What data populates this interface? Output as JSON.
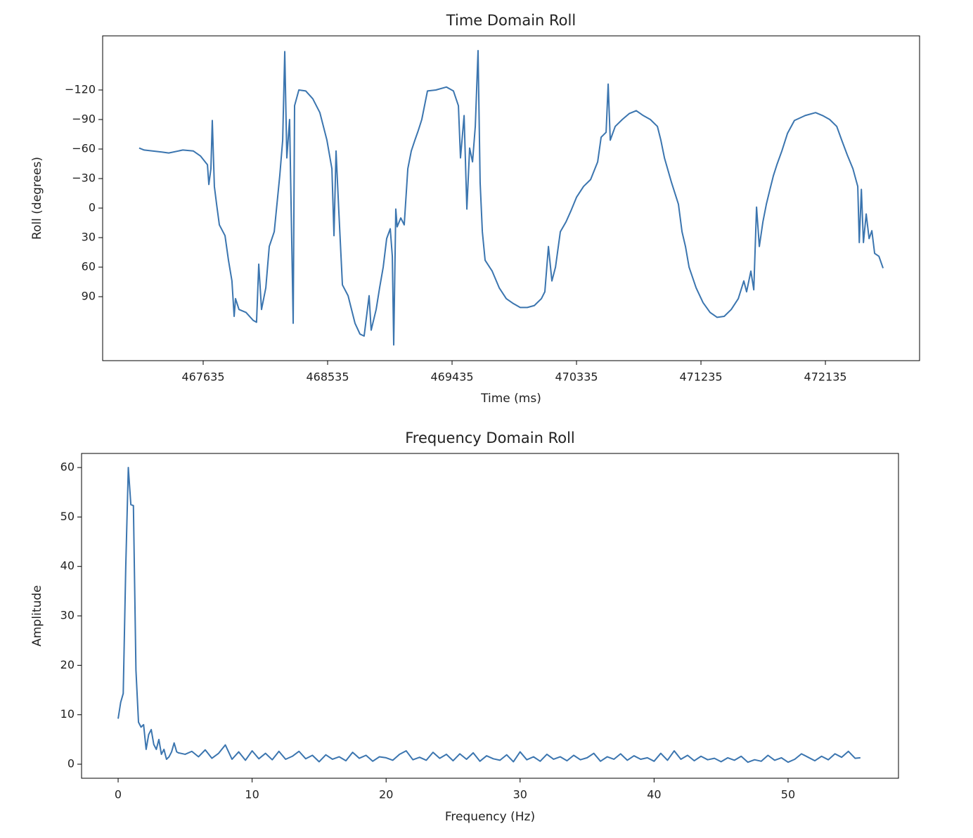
{
  "chart_data": [
    {
      "type": "line",
      "title": "Time Domain Roll",
      "xlabel": "Time (ms)",
      "ylabel": "Roll (degrees)",
      "color": "#3b75af",
      "x": [
        467172,
        467208,
        467335,
        467386,
        467488,
        467564,
        467615,
        467666,
        467676,
        467691,
        467701,
        467716,
        467732,
        467752,
        467793,
        467818,
        467843,
        467859,
        467869,
        467894,
        467945,
        467996,
        468021,
        468037,
        468057,
        468088,
        468113,
        468149,
        468189,
        468210,
        468225,
        468240,
        468260,
        468286,
        468296,
        468327,
        468377,
        468428,
        468479,
        468530,
        468566,
        468581,
        468596,
        468616,
        468642,
        468683,
        468708,
        468733,
        468769,
        468799,
        468835,
        468850,
        468886,
        468911,
        468937,
        468962,
        468988,
        469003,
        469013,
        469028,
        469038,
        469064,
        469089,
        469115,
        469140,
        469166,
        469191,
        469216,
        469257,
        469318,
        469394,
        469445,
        469481,
        469496,
        469522,
        469542,
        469562,
        469583,
        469603,
        469623,
        469638,
        469654,
        469674,
        469725,
        469776,
        469827,
        469878,
        469928,
        469979,
        470030,
        470081,
        470106,
        470132,
        470157,
        470183,
        470218,
        470259,
        470294,
        470335,
        470386,
        470437,
        470488,
        470513,
        470549,
        470564,
        470579,
        470615,
        470666,
        470716,
        470767,
        470818,
        470869,
        470920,
        470945,
        470971,
        471022,
        471072,
        471098,
        471123,
        471149,
        471200,
        471250,
        471301,
        471352,
        471403,
        471454,
        471505,
        471545,
        471565,
        471596,
        471617,
        471637,
        471657,
        471683,
        471708,
        471734,
        471759,
        471784,
        471820,
        471861,
        471911,
        471988,
        472064,
        472115,
        472166,
        472217,
        472253,
        472293,
        472334,
        472369,
        472380,
        472395,
        472410,
        472430,
        472451,
        472471,
        472491,
        472522,
        472552
      ],
      "values": [
        -61,
        -59,
        -57,
        -56,
        -59,
        -58,
        -53,
        -44,
        -24,
        -40,
        -89,
        -22,
        -4,
        17,
        28,
        53,
        74,
        110,
        92,
        103,
        106,
        114,
        116,
        57,
        103,
        81,
        39,
        24,
        -33,
        -69,
        -159,
        -51,
        -90,
        117,
        -104,
        -120,
        -119,
        -111,
        -97,
        -69,
        -40,
        28,
        -58,
        3,
        78,
        89,
        103,
        117,
        128,
        130,
        89,
        124,
        103,
        81,
        60,
        31,
        21,
        49,
        139,
        1,
        19,
        10,
        17,
        -40,
        -58,
        -69,
        -79,
        -90,
        -119,
        -120,
        -123,
        -119,
        -104,
        -51,
        -94,
        1,
        -61,
        -47,
        -83,
        -160,
        -26,
        24,
        53,
        64,
        81,
        92,
        97,
        101,
        101,
        99,
        92,
        85,
        39,
        74,
        60,
        24,
        14,
        3,
        -11,
        -22,
        -29,
        -47,
        -72,
        -77,
        -126,
        -69,
        -83,
        -90,
        -96,
        -99,
        -94,
        -90,
        -83,
        -69,
        -51,
        -26,
        -4,
        24,
        39,
        60,
        81,
        96,
        106,
        111,
        110,
        103,
        92,
        74,
        85,
        64,
        83,
        -1,
        39,
        14,
        -4,
        -19,
        -33,
        -44,
        -58,
        -76,
        -89,
        -94,
        -97,
        -94,
        -90,
        -83,
        -69,
        -54,
        -40,
        -22,
        35,
        -19,
        35,
        6,
        31,
        23,
        46,
        49,
        61
      ],
      "xlim": [
        466908,
        472816
      ],
      "xticks": [
        467635,
        468535,
        469435,
        470335,
        471235,
        472135
      ],
      "ylim": [
        -175,
        155
      ],
      "y_inverted": true,
      "yticks": [
        {
          "value": -120,
          "label": "−120"
        },
        {
          "value": -90,
          "label": "−90"
        },
        {
          "value": -60,
          "label": "−60"
        },
        {
          "value": -30,
          "label": "−30"
        },
        0,
        30,
        60,
        90
      ]
    },
    {
      "type": "line",
      "title": "Frequency Domain Roll",
      "xlabel": "Frequency (Hz)",
      "ylabel": "Amplitude",
      "color": "#3b75af",
      "x": [
        0,
        0.19,
        0.38,
        0.57,
        0.76,
        0.95,
        1.14,
        1.33,
        1.52,
        1.71,
        1.9,
        2.09,
        2.28,
        2.47,
        2.66,
        2.85,
        3.04,
        3.23,
        3.42,
        3.61,
        3.8,
        3.99,
        4.18,
        4.37,
        4.5,
        5,
        5.5,
        6,
        6.5,
        7,
        7.5,
        8,
        8.5,
        9,
        9.5,
        10,
        10.5,
        11,
        11.5,
        12,
        12.5,
        13,
        13.5,
        14,
        14.5,
        15,
        15.5,
        16,
        16.5,
        17,
        17.5,
        18,
        18.5,
        19,
        19.5,
        20,
        20.5,
        21,
        21.5,
        22,
        22.5,
        23,
        23.5,
        24,
        24.5,
        25,
        25.5,
        26,
        26.5,
        27,
        27.5,
        28,
        28.5,
        29,
        29.5,
        30,
        30.5,
        31,
        31.5,
        32,
        32.5,
        33,
        33.5,
        34,
        34.5,
        35,
        35.5,
        36,
        36.5,
        37,
        37.5,
        38,
        38.5,
        39,
        39.5,
        40,
        40.5,
        41,
        41.5,
        42,
        42.5,
        43,
        43.5,
        44,
        44.5,
        45,
        45.5,
        46,
        46.5,
        47,
        47.5,
        48,
        48.5,
        49,
        49.5,
        50,
        50.5,
        51,
        51.5,
        52,
        52.5,
        53,
        53.5,
        54,
        54.5,
        55,
        55.4
      ],
      "values": [
        9.2,
        12.5,
        14.3,
        40,
        60,
        52.5,
        52.3,
        19,
        8.5,
        7.5,
        8,
        3,
        6,
        7,
        4,
        3,
        5,
        2,
        3,
        1,
        1.5,
        2.5,
        4.3,
        2.5,
        2.3,
        2.0,
        2.6,
        1.5,
        2.9,
        1.2,
        2.2,
        3.9,
        1.0,
        2.5,
        0.8,
        2.7,
        1.1,
        2.2,
        0.9,
        2.6,
        1.0,
        1.6,
        2.6,
        1.1,
        1.8,
        0.5,
        1.9,
        1.0,
        1.5,
        0.7,
        2.4,
        1.2,
        1.8,
        0.6,
        1.5,
        1.3,
        0.8,
        2.0,
        2.7,
        0.9,
        1.4,
        0.8,
        2.4,
        1.2,
        2.0,
        0.7,
        2.1,
        1.0,
        2.3,
        0.6,
        1.7,
        1.1,
        0.8,
        1.9,
        0.5,
        2.5,
        0.9,
        1.5,
        0.6,
        2.0,
        1.0,
        1.5,
        0.7,
        1.8,
        0.9,
        1.3,
        2.2,
        0.6,
        1.5,
        1.0,
        2.1,
        0.8,
        1.7,
        1.0,
        1.3,
        0.6,
        2.2,
        0.8,
        2.7,
        1.0,
        1.8,
        0.7,
        1.6,
        0.9,
        1.2,
        0.5,
        1.3,
        0.8,
        1.6,
        0.4,
        0.9,
        0.6,
        1.8,
        0.8,
        1.3,
        0.4,
        1.0,
        2.1,
        1.4,
        0.7,
        1.6,
        0.9,
        2.1,
        1.4,
        2.6,
        1.2,
        1.3
      ],
      "xlim": [
        -2.73,
        58.24
      ],
      "xticks": [
        0,
        10,
        20,
        30,
        40,
        50
      ],
      "ylim": [
        -2.84,
        62.85
      ],
      "yticks": [
        0,
        10,
        20,
        30,
        40,
        50,
        60
      ]
    }
  ]
}
